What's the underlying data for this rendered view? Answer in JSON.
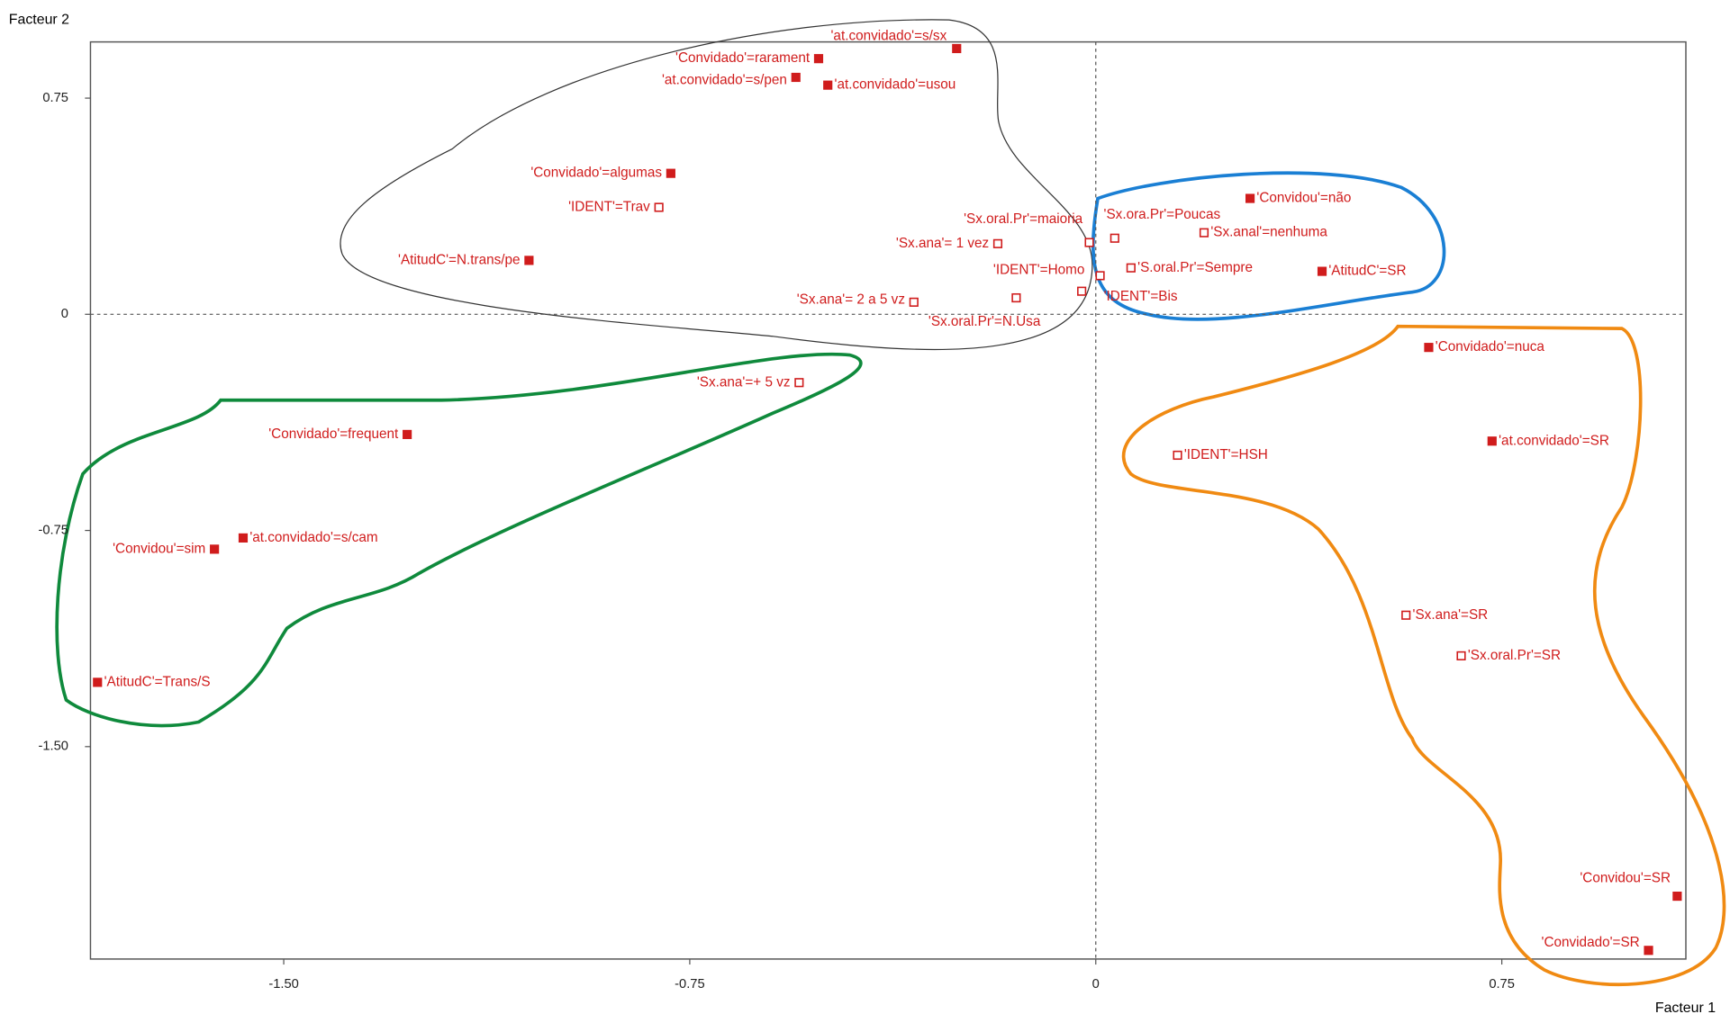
{
  "chart_data": {
    "type": "scatter",
    "xlabel": "Facteur 1",
    "ylabel": "Facteur 2",
    "xlim": [
      -1.857,
      1.09
    ],
    "ylim": [
      -2.237,
      0.945
    ],
    "xticks": [
      {
        "value": -1.5,
        "label": "-1.50"
      },
      -0.75,
      0,
      0.75
    ],
    "yticks": [
      {
        "value": -1.5,
        "label": "-1.50"
      },
      -0.75,
      0,
      0.75
    ],
    "color": "#d01c1c",
    "labels": [
      "'at.convidado'=s/sx",
      "'Convidado'=rarament",
      "'at.convidado'=s/pen",
      "'at.convidado'=usou",
      "'Convidado'=algumas",
      "'IDENT'=Trav",
      "'AtitudC'=N.trans/pe",
      "'Sx.oral.Pr'=maioria",
      "'Sx.ana'= 1 vez",
      "'IDENT'=Homo",
      "'Sx.ana'= 2 a 5 vz",
      "'Sx.oral.Pr'=N.Usa",
      "'IDENT'=Bis",
      "'Sx.ora.Pr'=Poucas",
      "'Convidou'=não",
      "'Sx.anal'=nenhuma",
      "'S.oral.Pr'=Sempre",
      "'AtitudC'=SR",
      "'Sx.ana'=+ 5 vz",
      "'Convidado'=frequent",
      "'at.convidado'=s/cam",
      "'Convidou'=sim",
      "'AtitudC'=Trans/S",
      "'Convidado'=nuca",
      "'IDENT'=HSH",
      "'at.convidado'=SR",
      "'Sx.ana'=SR",
      "'Sx.oral.Pr'=SR",
      "'Convidou'=SR",
      "'Convidado'=SR"
    ],
    "x": [
      -0.257,
      -0.512,
      -0.554,
      -0.495,
      -0.785,
      -0.807,
      -1.047,
      -0.012,
      -0.181,
      0.008,
      -0.336,
      -0.147,
      -0.026,
      0.035,
      0.285,
      0.2,
      0.065,
      0.418,
      -0.548,
      -1.272,
      -1.575,
      -1.628,
      -1.844,
      0.615,
      0.151,
      0.732,
      0.573,
      0.675,
      1.074,
      1.021
    ],
    "y": [
      0.922,
      0.887,
      0.822,
      0.795,
      0.489,
      0.371,
      0.187,
      0.249,
      0.245,
      0.134,
      0.042,
      0.057,
      0.08,
      0.264,
      0.402,
      0.283,
      0.161,
      0.149,
      -0.237,
      -0.417,
      -0.776,
      -0.815,
      -1.277,
      -0.115,
      -0.489,
      -0.44,
      -1.044,
      -1.185,
      -2.019,
      -2.207
    ],
    "filled": [
      true,
      true,
      true,
      true,
      true,
      false,
      true,
      false,
      false,
      false,
      false,
      false,
      false,
      false,
      true,
      false,
      false,
      true,
      false,
      true,
      true,
      true,
      true,
      true,
      false,
      true,
      false,
      false,
      true,
      true
    ]
  }
}
